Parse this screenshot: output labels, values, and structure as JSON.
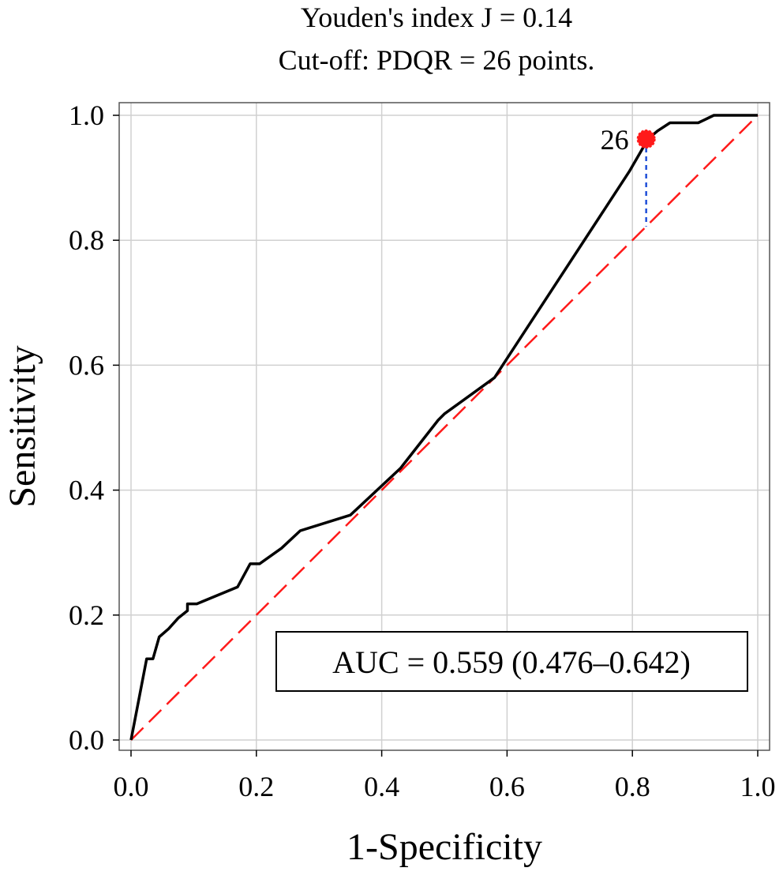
{
  "chart_data": {
    "type": "line",
    "title_line1": "Youden's index J = 0.14",
    "title_line2": "Cut-off: PDQR = 26 points.",
    "xlabel": "1-Specificity",
    "ylabel": "Sensitivity",
    "xlim": [
      0,
      1
    ],
    "ylim": [
      0,
      1
    ],
    "grid": true,
    "x_ticks": [
      {
        "value": 0.0,
        "label": "0.0"
      },
      {
        "value": 0.2,
        "label": "0.2"
      },
      {
        "value": 0.4,
        "label": "0.4"
      },
      {
        "value": 0.6,
        "label": "0.6"
      },
      {
        "value": 0.8,
        "label": "0.8"
      },
      {
        "value": 1.0,
        "label": "1.0"
      }
    ],
    "y_ticks": [
      {
        "value": 0.0,
        "label": "0.0"
      },
      {
        "value": 0.2,
        "label": "0.2"
      },
      {
        "value": 0.4,
        "label": "0.4"
      },
      {
        "value": 0.6,
        "label": "0.6"
      },
      {
        "value": 0.8,
        "label": "0.8"
      },
      {
        "value": 1.0,
        "label": "1.0"
      }
    ],
    "series": [
      {
        "name": "ROC curve",
        "color": "#000000",
        "style": "solid",
        "points": [
          [
            0.0,
            0.0
          ],
          [
            0.025,
            0.13
          ],
          [
            0.035,
            0.13
          ],
          [
            0.045,
            0.165
          ],
          [
            0.06,
            0.178
          ],
          [
            0.075,
            0.195
          ],
          [
            0.09,
            0.207
          ],
          [
            0.09,
            0.218
          ],
          [
            0.105,
            0.218
          ],
          [
            0.17,
            0.245
          ],
          [
            0.19,
            0.282
          ],
          [
            0.205,
            0.282
          ],
          [
            0.24,
            0.307
          ],
          [
            0.27,
            0.335
          ],
          [
            0.35,
            0.36
          ],
          [
            0.43,
            0.435
          ],
          [
            0.49,
            0.512
          ],
          [
            0.5,
            0.522
          ],
          [
            0.58,
            0.58
          ],
          [
            0.795,
            0.91
          ],
          [
            0.825,
            0.962
          ],
          [
            0.84,
            0.975
          ],
          [
            0.86,
            0.988
          ],
          [
            0.905,
            0.988
          ],
          [
            0.93,
            1.0
          ],
          [
            1.0,
            1.0
          ]
        ]
      },
      {
        "name": "Reference line",
        "color": "#ff1a1a",
        "style": "dashed",
        "points": [
          [
            0.0,
            0.0
          ],
          [
            1.0,
            1.0
          ]
        ]
      }
    ],
    "cutoff": {
      "x": 0.822,
      "y": 0.962,
      "label": "26",
      "marker_color": "#ff1a1a",
      "youden_line_color": "#1f4fd8"
    },
    "auc_label": "AUC = 0.559 (0.476–0.642)"
  }
}
